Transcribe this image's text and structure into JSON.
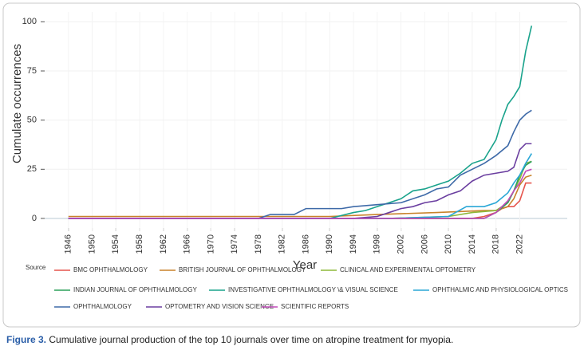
{
  "chart_data": {
    "type": "line",
    "x_label": "Year",
    "y_label": "Cumulate occurrences",
    "legend_title": "Source",
    "xlim": [
      1942,
      2030
    ],
    "ylim": [
      -6.5,
      105
    ],
    "xticks": [
      1946,
      1950,
      1954,
      1958,
      1962,
      1966,
      1970,
      1974,
      1978,
      1982,
      1986,
      1990,
      1994,
      1998,
      2002,
      2006,
      2010,
      2014,
      2018,
      2022
    ],
    "yticks": [
      0,
      25,
      50,
      75,
      100
    ],
    "grid": true,
    "series": [
      {
        "name": "BMC OPHTHALMOLOGY",
        "color": "#e6554d",
        "x": [
          1946,
          2014,
          2016,
          2018,
          2019,
          2020,
          2021,
          2022,
          2023,
          2024
        ],
        "values": [
          0,
          0,
          1,
          3,
          5,
          6,
          6,
          9,
          18,
          18
        ]
      },
      {
        "name": "BRITISH JOURNAL OF OPHTHALMOLOGY",
        "color": "#c8822a",
        "x": [
          1946,
          1990,
          1998,
          2008,
          2016,
          2018,
          2020,
          2021,
          2022,
          2023,
          2024
        ],
        "values": [
          1,
          1,
          2,
          3,
          4,
          4,
          6,
          10,
          17,
          21,
          22
        ]
      },
      {
        "name": "CLINICAL AND EXPERIMENTAL OPTOMETRY",
        "color": "#8db83a",
        "x": [
          1946,
          2000,
          2010,
          2014,
          2018,
          2020,
          2022,
          2023,
          2024
        ],
        "values": [
          0,
          0,
          1,
          3,
          4,
          8,
          20,
          28,
          29
        ]
      },
      {
        "name": "INDIAN JOURNAL OF OPHTHALMOLOGY",
        "color": "#2ca05a",
        "x": [
          1946,
          2016,
          2018,
          2020,
          2021,
          2022,
          2023,
          2024
        ],
        "values": [
          0,
          0,
          3,
          8,
          14,
          22,
          27,
          29
        ]
      },
      {
        "name": "INVESTIGATIVE OPHTHALMOLOGY \\& VISUAL SCIENCE",
        "color": "#1aa38c",
        "x": [
          1946,
          1990,
          1994,
          1996,
          1998,
          2000,
          2002,
          2004,
          2006,
          2008,
          2010,
          2012,
          2014,
          2016,
          2018,
          2019,
          2020,
          2021,
          2022,
          2023,
          2024
        ],
        "values": [
          0,
          0,
          3,
          4,
          6,
          8,
          10,
          14,
          15,
          17,
          19,
          23,
          28,
          30,
          40,
          50,
          58,
          62,
          67,
          85,
          98
        ]
      },
      {
        "name": "OPHTHALMIC AND PHYSIOLOGICAL OPTICS",
        "color": "#2aa7d6",
        "x": [
          1946,
          2000,
          2010,
          2013,
          2016,
          2018,
          2020,
          2021,
          2022,
          2023,
          2024
        ],
        "values": [
          0,
          0,
          1,
          6,
          6,
          8,
          13,
          18,
          22,
          28,
          33
        ]
      },
      {
        "name": "OPHTHALMOLOGY",
        "color": "#3e6aa8",
        "x": [
          1946,
          1978,
          1980,
          1984,
          1986,
          1990,
          1992,
          1994,
          1998,
          2002,
          2006,
          2008,
          2010,
          2012,
          2014,
          2016,
          2018,
          2020,
          2021,
          2022,
          2023,
          2024
        ],
        "values": [
          0,
          0,
          2,
          2,
          5,
          5,
          5,
          6,
          7,
          8,
          12,
          15,
          16,
          22,
          25,
          28,
          32,
          37,
          44,
          50,
          53,
          55
        ]
      },
      {
        "name": "OPTOMETRY AND VISION SCIENCE",
        "color": "#6b3fa0",
        "x": [
          1946,
          1994,
          1998,
          2000,
          2002,
          2004,
          2006,
          2008,
          2010,
          2012,
          2014,
          2016,
          2018,
          2020,
          2021,
          2022,
          2023,
          2024
        ],
        "values": [
          0,
          0,
          1,
          3,
          5,
          6,
          8,
          9,
          12,
          14,
          19,
          22,
          23,
          24,
          26,
          35,
          38,
          38
        ]
      },
      {
        "name": "SCIENTIFIC REPORTS",
        "color": "#c04ab9",
        "x": [
          1946,
          2016,
          2018,
          2020,
          2021,
          2022,
          2023,
          2024
        ],
        "values": [
          0,
          0,
          3,
          9,
          14,
          18,
          24,
          25
        ]
      }
    ]
  },
  "caption": {
    "label": "Figure 3.",
    "text": " Cumulative journal production of the top 10 journals over time on atropine treatment for myopia."
  }
}
